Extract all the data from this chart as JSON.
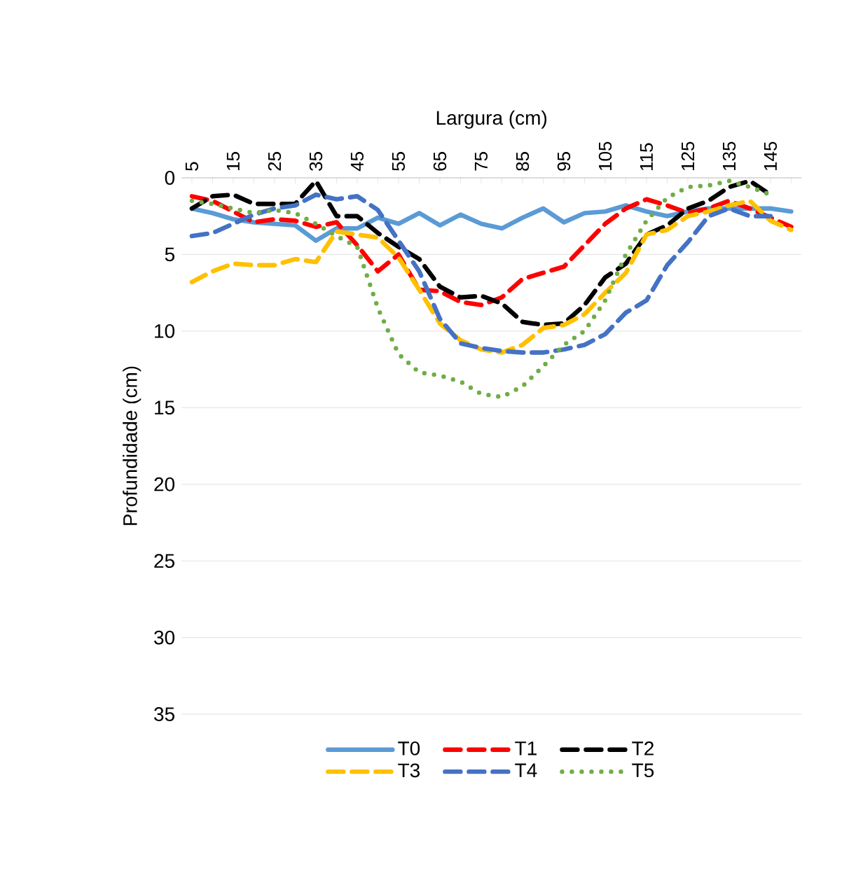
{
  "chart_data": {
    "type": "line",
    "xlabel": "Largura (cm)",
    "ylabel": "Profundidade (cm)",
    "categories": [
      "5",
      null,
      "15",
      null,
      "25",
      null,
      "35",
      null,
      "45",
      null,
      "55",
      null,
      "65",
      null,
      "75",
      null,
      "85",
      null,
      "95",
      null,
      "105",
      null,
      "115",
      null,
      "125",
      null,
      "135",
      null,
      "145",
      null
    ],
    "series": [
      {
        "name": "T0",
        "color": "#5b9bd5",
        "line_style": "solid",
        "values": [
          2.0,
          2.3,
          2.7,
          2.9,
          3.0,
          3.1,
          4.1,
          3.3,
          3.3,
          2.6,
          3.0,
          2.3,
          3.1,
          2.4,
          3.0,
          3.3,
          2.6,
          2.0,
          2.9,
          2.3,
          2.2,
          1.8,
          2.2,
          2.5,
          2.2,
          2.0,
          2.0,
          2.0,
          2.0,
          2.2
        ]
      },
      {
        "name": "T1",
        "color": "#ff0000",
        "line_style": "dashed",
        "values": [
          1.2,
          1.5,
          2.2,
          2.9,
          2.7,
          2.8,
          3.2,
          2.9,
          4.4,
          6.1,
          5.0,
          7.3,
          7.4,
          8.1,
          8.3,
          7.8,
          6.6,
          6.2,
          5.8,
          4.4,
          3.0,
          2.0,
          1.4,
          1.8,
          2.3,
          2.0,
          1.5,
          2.0,
          2.6,
          3.2
        ]
      },
      {
        "name": "T2",
        "color": "#000000",
        "line_style": "dashed",
        "values": [
          2.0,
          1.2,
          1.1,
          1.7,
          1.7,
          1.7,
          0.2,
          2.5,
          2.5,
          3.6,
          4.5,
          5.3,
          7.1,
          7.8,
          7.7,
          8.2,
          9.4,
          9.6,
          9.5,
          8.3,
          6.5,
          5.6,
          3.7,
          3.1,
          2.0,
          1.5,
          0.6,
          0.2,
          1.1,
          null
        ]
      },
      {
        "name": "T3",
        "color": "#ffc000",
        "line_style": "dashed",
        "values": [
          6.8,
          6.1,
          5.6,
          5.7,
          5.7,
          5.3,
          5.5,
          3.5,
          3.7,
          3.9,
          5.2,
          7.3,
          9.5,
          10.6,
          11.2,
          11.4,
          10.9,
          9.8,
          9.6,
          8.9,
          7.5,
          6.2,
          3.7,
          3.4,
          2.5,
          2.2,
          1.8,
          1.5,
          2.8,
          3.4
        ]
      },
      {
        "name": "T4",
        "color": "#4472c4",
        "line_style": "dashed",
        "values": [
          3.8,
          3.6,
          3.0,
          2.4,
          2.0,
          1.8,
          1.1,
          1.4,
          1.2,
          2.1,
          4.1,
          6.1,
          9.2,
          10.8,
          11.1,
          11.3,
          11.4,
          11.4,
          11.2,
          10.9,
          10.2,
          8.8,
          8.0,
          5.7,
          4.2,
          2.5,
          2.0,
          2.5,
          2.5,
          null
        ]
      },
      {
        "name": "T5",
        "color": "#70ad47",
        "line_style": "dotted",
        "values": [
          1.5,
          1.7,
          2.0,
          2.3,
          2.1,
          2.3,
          3.0,
          3.8,
          4.5,
          8.5,
          11.5,
          12.7,
          12.9,
          13.3,
          14.1,
          14.3,
          13.6,
          12.3,
          10.9,
          10.0,
          8.0,
          5.0,
          2.8,
          1.3,
          0.6,
          0.5,
          0.2,
          0.6,
          1.1,
          null
        ]
      }
    ],
    "ylim": [
      35,
      0
    ],
    "yticks": [
      0,
      5,
      10,
      15,
      20,
      25,
      30,
      35
    ],
    "grid": "y",
    "legend": "bottom"
  }
}
